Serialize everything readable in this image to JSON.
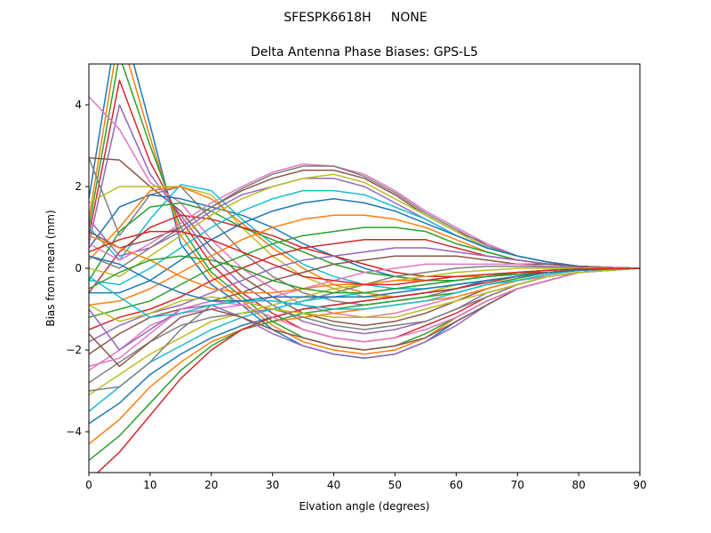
{
  "figure": {
    "suptitle": "SFESPK6618H     NONE"
  },
  "chart_data": {
    "type": "line",
    "title": "Delta Antenna Phase Biases: GPS-L5",
    "xlabel": "Elvation angle (degrees)",
    "ylabel": "Bias from mean (mm)",
    "xlim": [
      0,
      90
    ],
    "ylim": [
      -5,
      5
    ],
    "xticks": [
      0,
      10,
      20,
      30,
      40,
      50,
      60,
      70,
      80,
      90
    ],
    "yticks": [
      -4,
      -2,
      0,
      2,
      4
    ],
    "xtick_labels": [
      "0",
      "10",
      "20",
      "30",
      "40",
      "50",
      "60",
      "70",
      "80",
      "90"
    ],
    "ytick_labels": [
      "−4",
      "−2",
      "0",
      "2",
      "4"
    ],
    "grid": false,
    "legend": "none",
    "palette": [
      "#1f77b4",
      "#ff7f0e",
      "#2ca02c",
      "#d62728",
      "#9467bd",
      "#8c564b",
      "#e377c2",
      "#7f7f7f",
      "#bcbd22",
      "#17becf"
    ],
    "x": [
      0,
      5,
      10,
      15,
      20,
      25,
      30,
      35,
      40,
      45,
      50,
      55,
      60,
      65,
      70,
      75,
      80,
      85,
      90
    ],
    "series": [
      {
        "values": [
          1.7,
          6.3,
          3.5,
          0.6,
          -0.4,
          -0.9,
          -1.5,
          -1.9,
          -2.1,
          -2.2,
          -2.1,
          -1.8,
          -1.3,
          -0.9,
          -0.5,
          -0.3,
          -0.1,
          -0.05,
          0
        ]
      },
      {
        "values": [
          1.2,
          5.8,
          3.2,
          0.8,
          -0.2,
          -0.8,
          -1.4,
          -1.8,
          -2.0,
          -2.1,
          -2.0,
          -1.7,
          -1.2,
          -0.8,
          -0.5,
          -0.3,
          -0.1,
          -0.05,
          0
        ]
      },
      {
        "values": [
          1.0,
          5.2,
          3.0,
          1.0,
          -0.1,
          -0.7,
          -1.3,
          -1.7,
          -1.9,
          -2.0,
          -1.9,
          -1.6,
          -1.2,
          -0.8,
          -0.5,
          -0.3,
          -0.1,
          -0.05,
          0
        ]
      },
      {
        "values": [
          0.8,
          4.6,
          2.6,
          1.2,
          0.1,
          -0.6,
          -1.1,
          -1.5,
          -1.7,
          -1.8,
          -1.7,
          -1.4,
          -1.1,
          -0.7,
          -0.4,
          -0.2,
          -0.1,
          -0.05,
          0
        ]
      },
      {
        "values": [
          0.6,
          4.0,
          2.3,
          1.3,
          0.3,
          -0.4,
          -0.9,
          -1.3,
          -1.5,
          -1.6,
          -1.5,
          -1.3,
          -1.0,
          -0.6,
          -0.4,
          -0.2,
          -0.1,
          -0.05,
          0
        ]
      },
      {
        "values": [
          2.7,
          2.65,
          2.0,
          1.4,
          0.5,
          -0.2,
          -0.7,
          -1.1,
          -1.3,
          -1.4,
          -1.3,
          -1.1,
          -0.8,
          -0.5,
          -0.3,
          -0.2,
          -0.1,
          -0.05,
          0
        ]
      },
      {
        "values": [
          4.2,
          3.4,
          2.1,
          1.6,
          0.7,
          0.0,
          -0.5,
          -0.9,
          -1.1,
          -1.2,
          -1.1,
          -0.9,
          -0.7,
          -0.5,
          -0.3,
          -0.2,
          -0.1,
          -0.05,
          0
        ]
      },
      {
        "values": [
          2.7,
          0.8,
          1.8,
          2.0,
          1.2,
          0.4,
          -0.2,
          -0.6,
          -0.8,
          -0.9,
          -0.8,
          -0.7,
          -0.5,
          -0.3,
          -0.2,
          -0.1,
          -0.05,
          -0.02,
          0
        ]
      },
      {
        "values": [
          1.6,
          2.0,
          2.0,
          2.0,
          1.8,
          1.0,
          0.3,
          -0.2,
          -0.5,
          -0.7,
          -0.7,
          -0.6,
          -0.4,
          -0.3,
          -0.2,
          -0.1,
          -0.05,
          -0.02,
          0
        ]
      },
      {
        "values": [
          1.0,
          0.2,
          1.2,
          2.05,
          1.9,
          1.2,
          0.6,
          0.1,
          -0.2,
          -0.4,
          -0.5,
          -0.5,
          -0.4,
          -0.3,
          -0.2,
          -0.1,
          -0.05,
          -0.02,
          0
        ]
      },
      {
        "values": [
          0.5,
          1.5,
          1.8,
          1.7,
          1.5,
          1.3,
          1.0,
          0.6,
          0.3,
          0.0,
          -0.2,
          -0.3,
          -0.3,
          -0.2,
          -0.15,
          -0.1,
          -0.05,
          -0.02,
          0
        ]
      },
      {
        "values": [
          0.2,
          1.0,
          1.9,
          2.0,
          1.7,
          1.1,
          0.5,
          0.0,
          -0.4,
          -0.6,
          -0.7,
          -0.6,
          -0.5,
          -0.3,
          -0.2,
          -0.1,
          -0.05,
          -0.02,
          0
        ]
      },
      {
        "values": [
          -0.3,
          0.9,
          1.5,
          1.6,
          1.4,
          1.0,
          0.7,
          0.4,
          0.1,
          -0.1,
          -0.2,
          -0.3,
          -0.3,
          -0.2,
          -0.15,
          -0.1,
          -0.05,
          -0.02,
          0
        ]
      },
      {
        "values": [
          -0.6,
          0.4,
          1.0,
          1.3,
          1.2,
          1.0,
          0.8,
          0.5,
          0.3,
          0.1,
          -0.1,
          -0.2,
          -0.2,
          -0.2,
          -0.1,
          -0.1,
          -0.05,
          -0.02,
          0
        ]
      },
      {
        "values": [
          1.2,
          0.3,
          0.5,
          0.9,
          1.4,
          1.8,
          2.0,
          2.2,
          2.2,
          2.0,
          1.6,
          1.2,
          0.8,
          0.5,
          0.3,
          0.15,
          0.05,
          0.02,
          0
        ]
      },
      {
        "values": [
          0.9,
          0.5,
          0.7,
          1.0,
          1.5,
          1.9,
          2.2,
          2.4,
          2.4,
          2.2,
          1.8,
          1.3,
          0.9,
          0.6,
          0.3,
          0.15,
          0.05,
          0.02,
          0
        ]
      },
      {
        "values": [
          0.6,
          0.2,
          0.6,
          1.1,
          1.6,
          2.0,
          2.35,
          2.55,
          2.5,
          2.3,
          1.9,
          1.4,
          1.0,
          0.6,
          0.3,
          0.15,
          0.05,
          0.02,
          0
        ]
      },
      {
        "values": [
          0.3,
          0.0,
          0.5,
          1.0,
          1.5,
          1.95,
          2.3,
          2.5,
          2.5,
          2.25,
          1.85,
          1.35,
          0.95,
          0.55,
          0.3,
          0.15,
          0.05,
          0.02,
          0
        ]
      },
      {
        "values": [
          0.0,
          -0.2,
          0.3,
          0.8,
          1.3,
          1.7,
          2.0,
          2.2,
          2.3,
          2.1,
          1.7,
          1.3,
          0.9,
          0.5,
          0.3,
          0.15,
          0.05,
          0.02,
          0
        ]
      },
      {
        "values": [
          -0.3,
          -0.4,
          0.0,
          0.5,
          1.0,
          1.4,
          1.7,
          1.9,
          1.9,
          1.8,
          1.5,
          1.2,
          0.8,
          0.5,
          0.3,
          0.15,
          0.05,
          0.02,
          0
        ]
      },
      {
        "values": [
          -0.6,
          -0.6,
          -0.3,
          0.2,
          0.7,
          1.1,
          1.4,
          1.6,
          1.7,
          1.6,
          1.4,
          1.1,
          0.8,
          0.5,
          0.3,
          0.15,
          0.05,
          0.02,
          0
        ]
      },
      {
        "values": [
          -0.9,
          -0.8,
          -0.5,
          -0.1,
          0.3,
          0.7,
          1.0,
          1.2,
          1.3,
          1.3,
          1.2,
          1.0,
          0.7,
          0.4,
          0.2,
          0.1,
          0.05,
          0.02,
          0
        ]
      },
      {
        "values": [
          -1.2,
          -1.0,
          -0.8,
          -0.4,
          0.0,
          0.3,
          0.6,
          0.8,
          0.9,
          1.0,
          1.0,
          0.9,
          0.6,
          0.4,
          0.2,
          0.1,
          0.05,
          0.02,
          0
        ]
      },
      {
        "values": [
          -1.5,
          -1.2,
          -1.0,
          -0.7,
          -0.3,
          0.0,
          0.3,
          0.5,
          0.6,
          0.7,
          0.7,
          0.7,
          0.5,
          0.3,
          0.2,
          0.1,
          0.05,
          0.02,
          0
        ]
      },
      {
        "values": [
          -1.8,
          -1.4,
          -1.1,
          -0.9,
          -0.6,
          -0.3,
          0.0,
          0.2,
          0.3,
          0.4,
          0.5,
          0.5,
          0.4,
          0.3,
          0.2,
          0.1,
          0.05,
          0.02,
          0
        ]
      },
      {
        "values": [
          -2.1,
          -1.6,
          -1.2,
          -1.0,
          -0.8,
          -0.6,
          -0.3,
          -0.1,
          0.1,
          0.2,
          0.3,
          0.3,
          0.3,
          0.2,
          0.1,
          0.1,
          0.05,
          0.02,
          0
        ]
      },
      {
        "values": [
          -2.5,
          -2.0,
          -1.4,
          -1.1,
          -1.0,
          -0.9,
          -0.7,
          -0.5,
          -0.3,
          -0.1,
          0.0,
          0.1,
          0.1,
          0.1,
          0.1,
          0.05,
          0.02,
          0.01,
          0
        ]
      },
      {
        "values": [
          -2.8,
          -2.3,
          -1.8,
          -1.4,
          -1.2,
          -1.1,
          -1.0,
          -0.8,
          -0.6,
          -0.4,
          -0.2,
          -0.1,
          0.0,
          0.05,
          0.05,
          0.03,
          0.02,
          0.01,
          0
        ]
      },
      {
        "values": [
          -3.1,
          -2.6,
          -2.1,
          -1.7,
          -1.3,
          -1.1,
          -0.9,
          -0.7,
          -0.5,
          -0.4,
          -0.3,
          -0.2,
          -0.1,
          -0.05,
          0.0,
          0.0,
          0.0,
          0.0,
          0
        ]
      },
      {
        "values": [
          -3.5,
          -2.9,
          -2.3,
          -1.9,
          -1.5,
          -1.2,
          -1.0,
          -0.8,
          -0.7,
          -0.6,
          -0.5,
          -0.4,
          -0.3,
          -0.2,
          -0.1,
          -0.05,
          -0.02,
          -0.01,
          0
        ]
      },
      {
        "values": [
          -3.8,
          -3.3,
          -2.6,
          -2.1,
          -1.7,
          -1.4,
          -1.2,
          -1.0,
          -0.9,
          -0.8,
          -0.7,
          -0.6,
          -0.5,
          -0.3,
          -0.2,
          -0.1,
          -0.05,
          -0.02,
          0
        ]
      },
      {
        "values": [
          -4.3,
          -3.7,
          -2.9,
          -2.3,
          -1.8,
          -1.5,
          -1.3,
          -1.2,
          -1.1,
          -1.0,
          -0.9,
          -0.8,
          -0.7,
          -0.5,
          -0.3,
          -0.15,
          -0.05,
          -0.02,
          0
        ]
      },
      {
        "values": [
          -4.7,
          -4.1,
          -3.3,
          -2.5,
          -1.9,
          -1.5,
          -1.3,
          -1.1,
          -1.0,
          -0.9,
          -0.8,
          -0.7,
          -0.6,
          -0.4,
          -0.25,
          -0.1,
          -0.05,
          -0.02,
          0
        ]
      },
      {
        "values": [
          -5.2,
          -4.5,
          -3.6,
          -2.7,
          -2.0,
          -1.5,
          -1.2,
          -1.0,
          -0.9,
          -0.8,
          -0.7,
          -0.6,
          -0.5,
          -0.35,
          -0.2,
          -0.1,
          -0.05,
          -0.02,
          0
        ]
      },
      {
        "values": [
          -1.0,
          -2.0,
          -1.5,
          -1.0,
          -0.9,
          -1.2,
          -1.6,
          -1.9,
          -2.1,
          -2.2,
          -2.1,
          -1.8,
          -1.4,
          -0.9,
          -0.5,
          -0.3,
          -0.1,
          -0.05,
          0
        ]
      },
      {
        "values": [
          -1.6,
          -2.4,
          -1.8,
          -1.2,
          -1.0,
          -1.2,
          -1.5,
          -1.7,
          -1.9,
          -2.0,
          -1.9,
          -1.7,
          -1.3,
          -0.9,
          -0.5,
          -0.3,
          -0.1,
          -0.05,
          0
        ]
      },
      {
        "values": [
          -2.4,
          -2.2,
          -1.6,
          -1.0,
          -0.8,
          -0.9,
          -1.2,
          -1.5,
          -1.7,
          -1.8,
          -1.7,
          -1.5,
          -1.2,
          -0.8,
          -0.5,
          -0.3,
          -0.1,
          -0.05,
          0
        ]
      },
      {
        "values": [
          -3.0,
          -2.9,
          -2.3,
          -1.5,
          -0.9,
          -0.8,
          -1.0,
          -1.2,
          -1.4,
          -1.5,
          -1.4,
          -1.3,
          -1.0,
          -0.7,
          -0.4,
          -0.2,
          -0.1,
          -0.05,
          0
        ]
      },
      {
        "values": [
          -0.9,
          -1.3,
          -1.1,
          -0.8,
          -0.7,
          -0.8,
          -1.0,
          -1.1,
          -1.2,
          -1.2,
          -1.2,
          -1.0,
          -0.8,
          -0.6,
          -0.4,
          -0.2,
          -0.1,
          -0.05,
          0
        ]
      },
      {
        "values": [
          -0.2,
          -0.7,
          -1.2,
          -1.1,
          -0.9,
          -0.8,
          -0.8,
          -0.9,
          -1.0,
          -1.0,
          -0.9,
          -0.8,
          -0.6,
          -0.4,
          -0.3,
          -0.15,
          -0.05,
          -0.02,
          0
        ]
      },
      {
        "values": [
          0.3,
          0.1,
          -0.3,
          -0.6,
          -0.8,
          -0.8,
          -0.7,
          -0.7,
          -0.7,
          -0.7,
          -0.6,
          -0.5,
          -0.4,
          -0.3,
          -0.2,
          -0.1,
          -0.05,
          -0.02,
          0
        ]
      },
      {
        "values": [
          0.8,
          0.5,
          0.2,
          -0.2,
          -0.5,
          -0.6,
          -0.6,
          -0.5,
          -0.4,
          -0.4,
          -0.3,
          -0.3,
          -0.2,
          -0.2,
          -0.1,
          -0.05,
          -0.02,
          -0.01,
          0
        ]
      },
      {
        "values": [
          -0.5,
          -0.1,
          0.2,
          0.3,
          0.2,
          0.0,
          -0.3,
          -0.5,
          -0.6,
          -0.6,
          -0.5,
          -0.4,
          -0.3,
          -0.2,
          -0.1,
          -0.05,
          -0.02,
          -0.01,
          0
        ]
      },
      {
        "values": [
          0.4,
          0.7,
          0.9,
          0.9,
          0.7,
          0.4,
          0.1,
          -0.2,
          -0.3,
          -0.4,
          -0.4,
          -0.3,
          -0.2,
          -0.15,
          -0.1,
          -0.05,
          -0.02,
          -0.01,
          0
        ]
      }
    ]
  }
}
